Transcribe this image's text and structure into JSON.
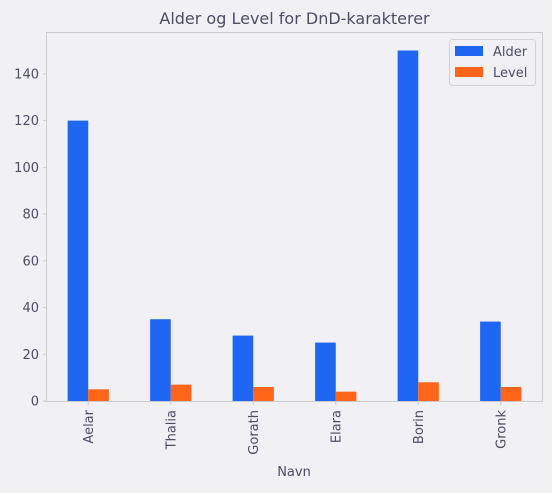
{
  "chart_data": {
    "type": "bar",
    "title": "Alder og Level for DnD-karakterer",
    "xlabel": "Navn",
    "ylabel": "",
    "categories": [
      "Aelar",
      "Thalia",
      "Gorath",
      "Elara",
      "Borin",
      "Gronk"
    ],
    "series": [
      {
        "name": "Alder",
        "color": "#1f66f2",
        "values": [
          120,
          35,
          28,
          25,
          150,
          34
        ]
      },
      {
        "name": "Level",
        "color": "#ff6619",
        "values": [
          5,
          7,
          6,
          4,
          8,
          6
        ]
      }
    ],
    "ylim": [
      0,
      157.5
    ],
    "yticks": [
      0,
      20,
      40,
      60,
      80,
      100,
      120,
      140
    ],
    "grid": false,
    "legend": "top-right",
    "colors": {
      "background": "#f0f0f5",
      "axes_edge": "#cccccc",
      "text": "#4d4d66"
    }
  }
}
